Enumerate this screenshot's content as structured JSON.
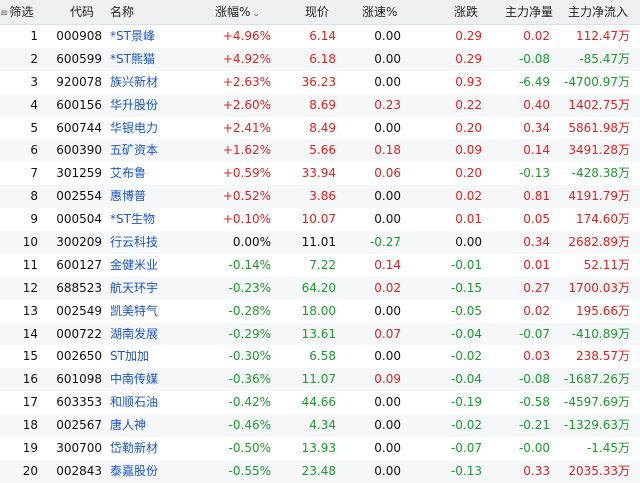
{
  "header": {
    "filter": "筛选",
    "code": "代码",
    "name": "名称",
    "change_pct": "涨幅%",
    "price": "现价",
    "speed": "涨速%",
    "change": "涨跌",
    "main_net": "主力净量",
    "main_inflow": "主力净流入"
  },
  "colors": {
    "up": "#e02020",
    "down": "#1b9a2d",
    "flat": "#111111",
    "name": "#1a56c8"
  },
  "rows": [
    {
      "idx": "1",
      "code": "000908",
      "name": "*ST景峰",
      "chg": "+4.96%",
      "price": "6.14",
      "speed": "0.00",
      "diff": "0.29",
      "net": "0.02",
      "inflow": "112.47万",
      "c": [
        "r",
        "r",
        "k",
        "r",
        "r",
        "r"
      ]
    },
    {
      "idx": "2",
      "code": "600599",
      "name": "*ST熊猫",
      "chg": "+4.92%",
      "price": "6.18",
      "speed": "0.00",
      "diff": "0.29",
      "net": "-0.08",
      "inflow": "-85.47万",
      "c": [
        "r",
        "r",
        "k",
        "r",
        "g",
        "g"
      ]
    },
    {
      "idx": "3",
      "code": "920078",
      "name": "族兴新材",
      "chg": "+2.63%",
      "price": "36.23",
      "speed": "0.00",
      "diff": "0.93",
      "net": "-6.49",
      "inflow": "-4700.97万",
      "c": [
        "r",
        "r",
        "k",
        "r",
        "g",
        "g"
      ]
    },
    {
      "idx": "4",
      "code": "600156",
      "name": "华升股份",
      "chg": "+2.60%",
      "price": "8.69",
      "speed": "0.23",
      "diff": "0.22",
      "net": "0.40",
      "inflow": "1402.75万",
      "c": [
        "r",
        "r",
        "r",
        "r",
        "r",
        "r"
      ]
    },
    {
      "idx": "5",
      "code": "600744",
      "name": "华银电力",
      "chg": "+2.41%",
      "price": "8.49",
      "speed": "0.00",
      "diff": "0.20",
      "net": "0.34",
      "inflow": "5861.98万",
      "c": [
        "r",
        "r",
        "k",
        "r",
        "r",
        "r"
      ]
    },
    {
      "idx": "6",
      "code": "600390",
      "name": "五矿资本",
      "chg": "+1.62%",
      "price": "5.66",
      "speed": "0.18",
      "diff": "0.09",
      "net": "0.14",
      "inflow": "3491.28万",
      "c": [
        "r",
        "r",
        "r",
        "r",
        "r",
        "r"
      ]
    },
    {
      "idx": "7",
      "code": "301259",
      "name": "艾布鲁",
      "chg": "+0.59%",
      "price": "33.94",
      "speed": "0.06",
      "diff": "0.20",
      "net": "-0.13",
      "inflow": "-428.38万",
      "c": [
        "r",
        "r",
        "r",
        "r",
        "g",
        "g"
      ]
    },
    {
      "idx": "8",
      "code": "002554",
      "name": "惠博普",
      "chg": "+0.52%",
      "price": "3.86",
      "speed": "0.00",
      "diff": "0.02",
      "net": "0.81",
      "inflow": "4191.79万",
      "c": [
        "r",
        "r",
        "k",
        "r",
        "r",
        "r"
      ]
    },
    {
      "idx": "9",
      "code": "000504",
      "name": "*ST生物",
      "chg": "+0.10%",
      "price": "10.07",
      "speed": "0.00",
      "diff": "0.01",
      "net": "0.05",
      "inflow": "174.60万",
      "c": [
        "r",
        "r",
        "k",
        "r",
        "r",
        "r"
      ]
    },
    {
      "idx": "10",
      "code": "300209",
      "name": "行云科技",
      "chg": "0.00%",
      "price": "11.01",
      "speed": "-0.27",
      "diff": "0.00",
      "net": "0.34",
      "inflow": "2682.89万",
      "c": [
        "k",
        "k",
        "g",
        "k",
        "r",
        "r"
      ]
    },
    {
      "idx": "11",
      "code": "600127",
      "name": "金健米业",
      "chg": "-0.14%",
      "price": "7.22",
      "speed": "0.14",
      "diff": "-0.01",
      "net": "0.01",
      "inflow": "52.11万",
      "c": [
        "g",
        "g",
        "r",
        "g",
        "r",
        "r"
      ]
    },
    {
      "idx": "12",
      "code": "688523",
      "name": "航天环宇",
      "chg": "-0.23%",
      "price": "64.20",
      "speed": "0.02",
      "diff": "-0.15",
      "net": "0.27",
      "inflow": "1700.03万",
      "c": [
        "g",
        "g",
        "r",
        "g",
        "r",
        "r"
      ]
    },
    {
      "idx": "13",
      "code": "002549",
      "name": "凯美特气",
      "chg": "-0.28%",
      "price": "18.00",
      "speed": "0.00",
      "diff": "-0.05",
      "net": "0.02",
      "inflow": "195.66万",
      "c": [
        "g",
        "g",
        "k",
        "g",
        "r",
        "r"
      ]
    },
    {
      "idx": "14",
      "code": "000722",
      "name": "湖南发展",
      "chg": "-0.29%",
      "price": "13.61",
      "speed": "0.07",
      "diff": "-0.04",
      "net": "-0.07",
      "inflow": "-410.89万",
      "c": [
        "g",
        "g",
        "r",
        "g",
        "g",
        "g"
      ]
    },
    {
      "idx": "15",
      "code": "002650",
      "name": "ST加加",
      "chg": "-0.30%",
      "price": "6.58",
      "speed": "0.00",
      "diff": "-0.02",
      "net": "0.03",
      "inflow": "238.57万",
      "c": [
        "g",
        "g",
        "k",
        "g",
        "r",
        "r"
      ]
    },
    {
      "idx": "16",
      "code": "601098",
      "name": "中南传媒",
      "chg": "-0.36%",
      "price": "11.07",
      "speed": "0.09",
      "diff": "-0.04",
      "net": "-0.08",
      "inflow": "-1687.26万",
      "c": [
        "g",
        "g",
        "r",
        "g",
        "g",
        "g"
      ]
    },
    {
      "idx": "17",
      "code": "603353",
      "name": "和顺石油",
      "chg": "-0.42%",
      "price": "44.66",
      "speed": "0.00",
      "diff": "-0.19",
      "net": "-0.58",
      "inflow": "-4597.69万",
      "c": [
        "g",
        "g",
        "k",
        "g",
        "g",
        "g"
      ]
    },
    {
      "idx": "18",
      "code": "002567",
      "name": "唐人神",
      "chg": "-0.46%",
      "price": "4.34",
      "speed": "0.00",
      "diff": "-0.02",
      "net": "-0.21",
      "inflow": "-1329.63万",
      "c": [
        "g",
        "g",
        "k",
        "g",
        "g",
        "g"
      ]
    },
    {
      "idx": "19",
      "code": "300700",
      "name": "岱勒新材",
      "chg": "-0.50%",
      "price": "13.93",
      "speed": "0.00",
      "diff": "-0.07",
      "net": "-0.00",
      "inflow": "-1.45万",
      "c": [
        "g",
        "g",
        "k",
        "g",
        "g",
        "g"
      ]
    },
    {
      "idx": "20",
      "code": "002843",
      "name": "泰嘉股份",
      "chg": "-0.55%",
      "price": "23.48",
      "speed": "0.00",
      "diff": "-0.13",
      "net": "0.33",
      "inflow": "2035.33万",
      "c": [
        "g",
        "g",
        "k",
        "g",
        "r",
        "r"
      ]
    }
  ]
}
